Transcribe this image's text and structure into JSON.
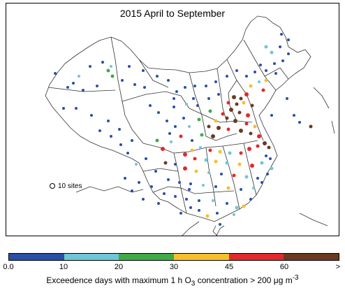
{
  "title": "2015 April to September",
  "legend": {
    "sites_label": "10 sites"
  },
  "colorbar": {
    "colors": [
      "#2a4fa8",
      "#6ec6d8",
      "#3fab47",
      "#f5c02a",
      "#e2292c",
      "#6b3a22"
    ],
    "ticks": [
      "0.0",
      "10",
      "20",
      "30",
      "45",
      "60",
      ">"
    ],
    "label_pre": "Exceedence days with maximum 1 h O",
    "label_sub": "3",
    "label_post": " concentration > 200 ",
    "label_unit": "μg m",
    "label_sup": "-3"
  }
}
